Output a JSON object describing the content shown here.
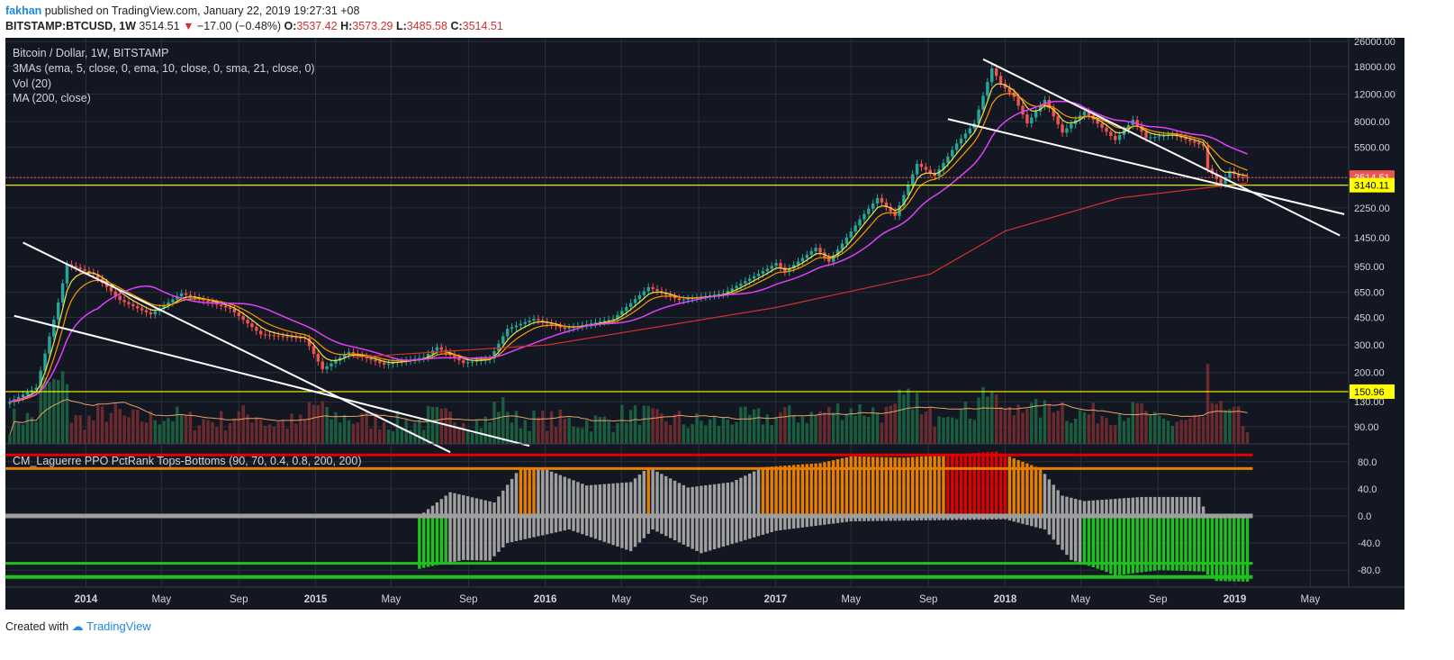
{
  "header": {
    "author": "fakhan",
    "published_text": "published on TradingView.com, January 22, 2019 19:27:31 +08",
    "symbol": "BITSTAMP:BTCUSD, 1W",
    "price": "3514.51",
    "arrow": "▼",
    "change": "−17.00 (−0.48%)",
    "o_label": "O:",
    "o_value": "3537.42",
    "h_label": "H:",
    "h_value": "3573.29",
    "l_label": "L:",
    "l_value": "3485.58",
    "c_label": "C:",
    "c_value": "3514.51"
  },
  "legend": {
    "title": "Bitcoin / Dollar, 1W, BITSTAMP",
    "ma3": "3MAs (ema, 5, close, 0, ema, 10, close, 0, sma, 21, close, 0)",
    "vol": "Vol (20)",
    "ma200": "MA (200, close)",
    "indicator": "CM_Laguerre PPO PctRank Tops-Bottoms (90, 70, 0.4, 0.8, 200, 200)"
  },
  "footer": {
    "created_with": "Created with",
    "brand": "TradingView"
  },
  "colors": {
    "background": "#131722",
    "grid": "#2a2e39",
    "candle_up": "#26a69a",
    "candle_down": "#ef5350",
    "ema5": "#f0e442",
    "ema10": "#ff9800",
    "sma21": "#e040fb",
    "ma200": "#d32f2f",
    "vol_ma": "#e8a06a",
    "trendline": "#ffffff",
    "hline": "#ffff00",
    "ppo_top": "#e00000",
    "ppo_warn": "#e67e00",
    "ppo_bottom": "#21c021",
    "ppo_neutral": "#a0a0a0"
  },
  "chart_data": [
    {
      "type": "candlestick",
      "title": "Bitcoin / Dollar, 1W, BITSTAMP",
      "scale": "log",
      "ylim": [
        70,
        26000
      ],
      "y_ticks": [
        90,
        130,
        200,
        300,
        450,
        650,
        950,
        1450,
        2250,
        3500,
        5500,
        8000,
        12000,
        18000,
        26000
      ],
      "y_tick_labels": [
        "90.00",
        "130.00",
        "200.00",
        "300.00",
        "450.00",
        "650.00",
        "950.00",
        "1450.00",
        "2250.00",
        "3514.51",
        "5500.00",
        "8000.00",
        "12000.00",
        "18000.00",
        "26000.00"
      ],
      "x_ticks": [
        "2014",
        "May",
        "Sep",
        "2015",
        "May",
        "Sep",
        "2016",
        "May",
        "Sep",
        "2017",
        "May",
        "Sep",
        "2018",
        "May",
        "Sep",
        "2019",
        "May"
      ],
      "x_tick_dates": [
        "2014-01-01",
        "2014-05-01",
        "2014-09-01",
        "2015-01-01",
        "2015-05-01",
        "2015-09-01",
        "2016-01-01",
        "2016-05-01",
        "2016-09-01",
        "2017-01-01",
        "2017-05-01",
        "2017-09-01",
        "2018-01-01",
        "2018-05-01",
        "2018-09-01",
        "2019-01-01",
        "2019-05-01"
      ],
      "xlim": [
        "2013-08-26",
        "2019-07-01"
      ],
      "current_price": 3514.51,
      "current_price_label": "3514.51",
      "horizontal_levels": [
        {
          "value": 3140.11,
          "label": "3140.11"
        },
        {
          "value": 150.96,
          "label": "150.96"
        }
      ],
      "key_closes": [
        {
          "date": "2013-09-02",
          "close": 130
        },
        {
          "date": "2013-10-14",
          "close": 160
        },
        {
          "date": "2013-11-18",
          "close": 560
        },
        {
          "date": "2013-12-02",
          "close": 980
        },
        {
          "date": "2014-01-13",
          "close": 850
        },
        {
          "date": "2014-02-24",
          "close": 580
        },
        {
          "date": "2014-04-14",
          "close": 470
        },
        {
          "date": "2014-06-02",
          "close": 640
        },
        {
          "date": "2014-08-18",
          "close": 510
        },
        {
          "date": "2014-10-06",
          "close": 350
        },
        {
          "date": "2014-12-15",
          "close": 330
        },
        {
          "date": "2015-01-12",
          "close": 210
        },
        {
          "date": "2015-02-23",
          "close": 270
        },
        {
          "date": "2015-04-20",
          "close": 225
        },
        {
          "date": "2015-06-22",
          "close": 250
        },
        {
          "date": "2015-07-13",
          "close": 290
        },
        {
          "date": "2015-08-24",
          "close": 230
        },
        {
          "date": "2015-10-05",
          "close": 245
        },
        {
          "date": "2015-11-02",
          "close": 380
        },
        {
          "date": "2015-12-14",
          "close": 440
        },
        {
          "date": "2016-02-01",
          "close": 380
        },
        {
          "date": "2016-04-18",
          "close": 440
        },
        {
          "date": "2016-06-13",
          "close": 700
        },
        {
          "date": "2016-08-01",
          "close": 580
        },
        {
          "date": "2016-10-10",
          "close": 640
        },
        {
          "date": "2016-12-19",
          "close": 920
        },
        {
          "date": "2017-01-02",
          "close": 1000
        },
        {
          "date": "2017-01-16",
          "close": 880
        },
        {
          "date": "2017-03-06",
          "close": 1250
        },
        {
          "date": "2017-03-27",
          "close": 1020
        },
        {
          "date": "2017-05-15",
          "close": 1900
        },
        {
          "date": "2017-06-12",
          "close": 2600
        },
        {
          "date": "2017-07-10",
          "close": 2000
        },
        {
          "date": "2017-08-14",
          "close": 4300
        },
        {
          "date": "2017-09-11",
          "close": 3600
        },
        {
          "date": "2017-10-16",
          "close": 5800
        },
        {
          "date": "2017-11-13",
          "close": 7800
        },
        {
          "date": "2017-12-11",
          "close": 17500
        },
        {
          "date": "2017-12-25",
          "close": 14000
        },
        {
          "date": "2018-01-15",
          "close": 11500
        },
        {
          "date": "2018-02-05",
          "close": 7800
        },
        {
          "date": "2018-03-05",
          "close": 11000
        },
        {
          "date": "2018-04-02",
          "close": 6800
        },
        {
          "date": "2018-05-07",
          "close": 9300
        },
        {
          "date": "2018-06-25",
          "close": 6100
        },
        {
          "date": "2018-07-23",
          "close": 8200
        },
        {
          "date": "2018-08-13",
          "close": 6300
        },
        {
          "date": "2018-09-24",
          "close": 6600
        },
        {
          "date": "2018-11-12",
          "close": 5600
        },
        {
          "date": "2018-11-19",
          "close": 4000
        },
        {
          "date": "2018-12-10",
          "close": 3200
        },
        {
          "date": "2018-12-24",
          "close": 3850
        },
        {
          "date": "2019-01-07",
          "close": 3550
        },
        {
          "date": "2019-01-21",
          "close": 3514.51
        }
      ],
      "ma200_points": [
        {
          "date": "2015-03-02",
          "value": 250
        },
        {
          "date": "2016-01-04",
          "value": 300
        },
        {
          "date": "2017-01-02",
          "value": 520
        },
        {
          "date": "2017-09-04",
          "value": 850
        },
        {
          "date": "2018-01-01",
          "value": 1600
        },
        {
          "date": "2018-07-02",
          "value": 2600
        },
        {
          "date": "2019-01-21",
          "value": 3250
        }
      ],
      "trendlines": [
        {
          "from": {
            "date": "2013-09-23",
            "value": 1350
          },
          "to": {
            "date": "2015-08-03",
            "value": 62
          }
        },
        {
          "from": {
            "date": "2013-09-09",
            "value": 460
          },
          "to": {
            "date": "2015-12-07",
            "value": 68
          }
        },
        {
          "from": {
            "date": "2017-11-27",
            "value": 20000
          },
          "to": {
            "date": "2019-06-17",
            "value": 1500
          }
        },
        {
          "from": {
            "date": "2017-10-02",
            "value": 8300
          },
          "to": {
            "date": "2019-06-24",
            "value": 2050
          }
        }
      ]
    },
    {
      "type": "bar",
      "title": "CM_Laguerre PPO PctRank Tops-Bottoms (90, 70, 0.4, 0.8, 200, 200)",
      "ylim": [
        -105,
        105
      ],
      "y_ticks": [
        80,
        40,
        0,
        -40,
        -80
      ],
      "y_tick_labels": [
        "80.0",
        "40.0",
        "0.0",
        "-40.0",
        "-80.0"
      ],
      "thresholds": [
        90,
        70,
        -70,
        -90
      ],
      "top_series": [
        {
          "date": "2015-06-15",
          "value": 0
        },
        {
          "date": "2015-08-03",
          "value": 35
        },
        {
          "date": "2015-10-12",
          "value": 20
        },
        {
          "date": "2015-11-23",
          "value": 72
        },
        {
          "date": "2016-01-04",
          "value": 68
        },
        {
          "date": "2016-03-07",
          "value": 45
        },
        {
          "date": "2016-05-16",
          "value": 50
        },
        {
          "date": "2016-06-13",
          "value": 72
        },
        {
          "date": "2016-08-15",
          "value": 42
        },
        {
          "date": "2016-10-24",
          "value": 50
        },
        {
          "date": "2016-12-12",
          "value": 72
        },
        {
          "date": "2017-03-13",
          "value": 78
        },
        {
          "date": "2017-05-01",
          "value": 88
        },
        {
          "date": "2017-07-24",
          "value": 86
        },
        {
          "date": "2017-12-18",
          "value": 95
        },
        {
          "date": "2018-02-26",
          "value": 70
        },
        {
          "date": "2018-04-02",
          "value": 30
        },
        {
          "date": "2018-05-07",
          "value": 22
        },
        {
          "date": "2018-08-06",
          "value": 28
        },
        {
          "date": "2018-11-05",
          "value": 28
        },
        {
          "date": "2018-11-19",
          "value": 0
        }
      ],
      "bottom_series": [
        {
          "date": "2015-06-15",
          "value": -78
        },
        {
          "date": "2015-07-27",
          "value": -70
        },
        {
          "date": "2015-08-24",
          "value": -65
        },
        {
          "date": "2015-10-05",
          "value": -66
        },
        {
          "date": "2015-11-02",
          "value": -40
        },
        {
          "date": "2016-02-08",
          "value": -20
        },
        {
          "date": "2016-05-16",
          "value": -52
        },
        {
          "date": "2016-06-20",
          "value": -20
        },
        {
          "date": "2016-09-05",
          "value": -55
        },
        {
          "date": "2017-01-02",
          "value": -22
        },
        {
          "date": "2017-05-01",
          "value": -8
        },
        {
          "date": "2018-01-01",
          "value": -5
        },
        {
          "date": "2018-03-05",
          "value": -20
        },
        {
          "date": "2018-04-16",
          "value": -65
        },
        {
          "date": "2018-06-04",
          "value": -80
        },
        {
          "date": "2018-06-25",
          "value": -88
        },
        {
          "date": "2018-09-03",
          "value": -80
        },
        {
          "date": "2018-11-12",
          "value": -82
        },
        {
          "date": "2018-12-03",
          "value": -96
        },
        {
          "date": "2019-01-21",
          "value": -97
        }
      ]
    }
  ]
}
